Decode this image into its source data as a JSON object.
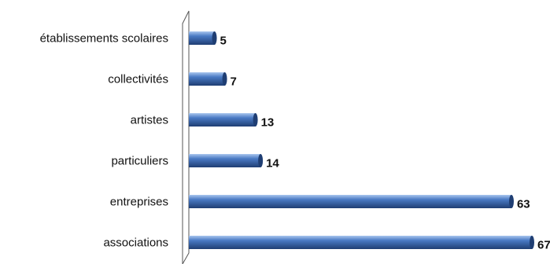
{
  "chart_data": {
    "type": "bar",
    "orientation": "horizontal",
    "categories": [
      "établissements scolaires",
      "collectivités",
      "artistes",
      "particuliers",
      "entreprises",
      "associations"
    ],
    "values": [
      5,
      7,
      13,
      14,
      63,
      67
    ],
    "title": "",
    "xlabel": "",
    "ylabel": "",
    "xlim": [
      0,
      67
    ],
    "grid": false,
    "legend": "none",
    "bar_color": "#4a7ac4",
    "bar_color_dark": "#1f3e73",
    "bar_color_light": "#a9c6ee"
  }
}
